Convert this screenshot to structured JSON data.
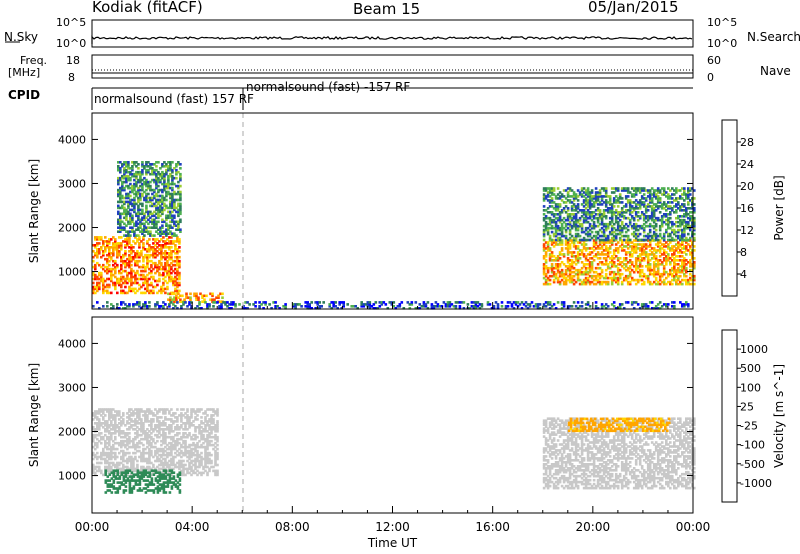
{
  "header": {
    "station": "Kodiak (fitACF)",
    "beam": "Beam 15",
    "date": "05/Jan/2015"
  },
  "top_panels": {
    "nsky_label": "N.Sky",
    "nsky_ticks": [
      "10^5",
      "10^0"
    ],
    "nsearch_label": "N.Search",
    "nsearch_ticks": [
      "10^5",
      "10^0"
    ],
    "freq_label_1": "Freq.",
    "freq_label_2": "[MHz]",
    "freq_ticks": [
      "18",
      "8"
    ],
    "nave_label": "Nave",
    "nave_ticks": [
      "60",
      "0"
    ],
    "cpid_label": "CPID",
    "cpid_segments": [
      {
        "label": "normalsound (fast) 157 RF",
        "start_hour": 0,
        "end_hour": 6
      },
      {
        "label": "normalsound (fast) -157 RF",
        "start_hour": 6,
        "end_hour": 24
      }
    ]
  },
  "x_axis": {
    "label": "Time UT",
    "ticks": [
      "00:00",
      "04:00",
      "08:00",
      "12:00",
      "16:00",
      "20:00",
      "00:00"
    ]
  },
  "chart_data": [
    {
      "type": "heatmap",
      "title": "",
      "xlabel": "Time UT",
      "ylabel": "Slant Range [km]",
      "xlim_hours": [
        0,
        24
      ],
      "ylim_km": [
        150,
        4600
      ],
      "y_ticks": [
        1000,
        2000,
        3000,
        4000
      ],
      "colorbar": {
        "label": "Power [dB]",
        "ticks": [
          "28",
          "24",
          "20",
          "16",
          "12",
          "8",
          "4"
        ],
        "range": [
          0,
          32
        ],
        "colors_bottom_to_top": [
          "#0000ff",
          "#1e3fbf",
          "#2e7d5a",
          "#4caf50",
          "#9acd32",
          "#ffd700",
          "#ffa500",
          "#ff4500",
          "#ff0000"
        ]
      },
      "echo_regions": [
        {
          "t": [
            0.0,
            3.5
          ],
          "range_km": [
            500,
            1800
          ],
          "power_db": 24
        },
        {
          "t": [
            3.0,
            5.2
          ],
          "range_km": [
            300,
            500
          ],
          "power_db": 22
        },
        {
          "t": [
            1.0,
            3.5
          ],
          "range_km": [
            1800,
            3500
          ],
          "power_db": 10
        },
        {
          "t": [
            18.0,
            24.0
          ],
          "range_km": [
            700,
            1700
          ],
          "power_db": 22
        },
        {
          "t": [
            18.0,
            24.0
          ],
          "range_km": [
            1700,
            2900
          ],
          "power_db": 10
        },
        {
          "t": [
            0.0,
            24.0
          ],
          "range_km": [
            150,
            300
          ],
          "power_db": 6
        }
      ]
    },
    {
      "type": "heatmap",
      "title": "",
      "xlabel": "Time UT",
      "ylabel": "Slant Range [km]",
      "xlim_hours": [
        0,
        24
      ],
      "ylim_km": [
        150,
        4600
      ],
      "y_ticks": [
        1000,
        2000,
        3000,
        4000
      ],
      "colorbar": {
        "label": "Velocity [m s^-1]",
        "ticks": [
          "1000",
          "500",
          "100",
          "25",
          "-25",
          "-100",
          "-500",
          "-1000"
        ],
        "colors_bottom_to_top": [
          "#ff0000",
          "#ff4500",
          "#ffa500",
          "#ffd700",
          "#c8c8c8",
          "#7ccd3f",
          "#2e8b57",
          "#1e5fbf",
          "#1a3fa0"
        ]
      },
      "echo_regions": [
        {
          "t": [
            0.0,
            5.0
          ],
          "range_km": [
            1000,
            2500
          ],
          "velocity_ms": 0
        },
        {
          "t": [
            0.5,
            3.5
          ],
          "range_km": [
            600,
            1100
          ],
          "velocity_ms": 300
        },
        {
          "t": [
            18.0,
            24.0
          ],
          "range_km": [
            700,
            2300
          ],
          "velocity_ms": 0
        },
        {
          "t": [
            19.0,
            23.0
          ],
          "range_km": [
            2000,
            2300
          ],
          "velocity_ms": -200
        }
      ]
    }
  ]
}
